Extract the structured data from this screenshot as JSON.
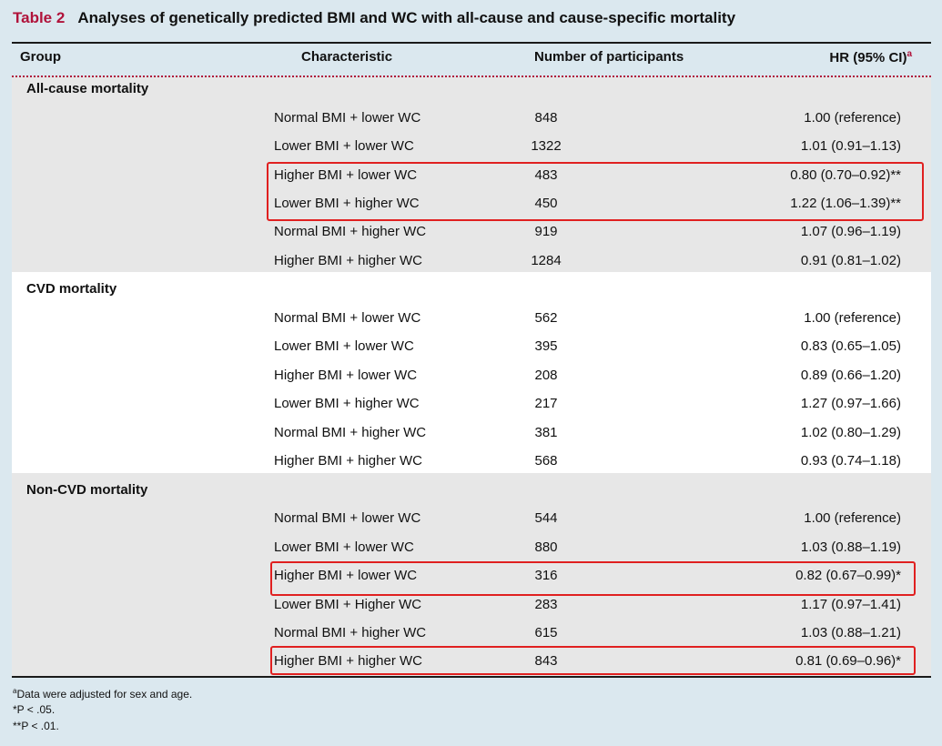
{
  "title": {
    "label": "Table 2",
    "text": "Analyses of genetically predicted BMI and WC with all-cause and cause-specific mortality"
  },
  "headers": {
    "group": "Group",
    "characteristic": "Characteristic",
    "participants": "Number of participants",
    "hr": "HR (95% CI)",
    "hr_sup": "a"
  },
  "sections": [
    {
      "name": "All-cause mortality",
      "rows": [
        {
          "characteristic": "Normal BMI + lower WC",
          "participants": "848",
          "hr": "1.00 (reference)"
        },
        {
          "characteristic": "Lower BMI + lower WC",
          "participants": "1322",
          "hr": "1.01 (0.91–1.13)"
        },
        {
          "characteristic": "Higher BMI + lower WC",
          "participants": "483",
          "hr": "0.80 (0.70–0.92)**"
        },
        {
          "characteristic": "Lower BMI + higher WC",
          "participants": "450",
          "hr": "1.22 (1.06–1.39)**"
        },
        {
          "characteristic": "Normal BMI + higher WC",
          "participants": "919",
          "hr": "1.07 (0.96–1.19)"
        },
        {
          "characteristic": "Higher BMI + higher WC",
          "participants": "1284",
          "hr": "0.91 (0.81–1.02)"
        }
      ]
    },
    {
      "name": "CVD mortality",
      "rows": [
        {
          "characteristic": "Normal BMI + lower WC",
          "participants": "562",
          "hr": "1.00 (reference)"
        },
        {
          "characteristic": "Lower BMI + lower WC",
          "participants": "395",
          "hr": "0.83 (0.65–1.05)"
        },
        {
          "characteristic": "Higher BMI + lower WC",
          "participants": "208",
          "hr": "0.89 (0.66–1.20)"
        },
        {
          "characteristic": "Lower BMI + higher WC",
          "participants": "217",
          "hr": "1.27 (0.97–1.66)"
        },
        {
          "characteristic": "Normal BMI + higher WC",
          "participants": "381",
          "hr": "1.02 (0.80–1.29)"
        },
        {
          "characteristic": "Higher BMI + higher WC",
          "participants": "568",
          "hr": "0.93 (0.74–1.18)"
        }
      ]
    },
    {
      "name": "Non-CVD mortality",
      "rows": [
        {
          "characteristic": "Normal BMI + lower WC",
          "participants": "544",
          "hr": "1.00 (reference)"
        },
        {
          "characteristic": "Lower BMI + lower WC",
          "participants": "880",
          "hr": "1.03 (0.88–1.19)"
        },
        {
          "characteristic": "Higher BMI + lower WC",
          "participants": "316",
          "hr": "0.82 (0.67–0.99)*"
        },
        {
          "characteristic": "Lower BMI + Higher WC",
          "participants": "283",
          "hr": "1.17 (0.97–1.41)"
        },
        {
          "characteristic": "Normal BMI + higher WC",
          "participants": "615",
          "hr": "1.03 (0.88–1.21)"
        },
        {
          "characteristic": "Higher BMI + higher WC",
          "participants": "843",
          "hr": "0.81 (0.69–0.96)*"
        }
      ]
    }
  ],
  "footnotes": {
    "a_sup": "a",
    "a_text": "Data were adjusted for sex and age.",
    "p05": "*P < .05.",
    "p01": "**P < .01."
  },
  "colors": {
    "title_label": "#b0123a",
    "highlight_box": "#e02020",
    "page_background": "#dbe8ef",
    "band_grey": "#e7e7e7",
    "band_white": "#ffffff"
  }
}
